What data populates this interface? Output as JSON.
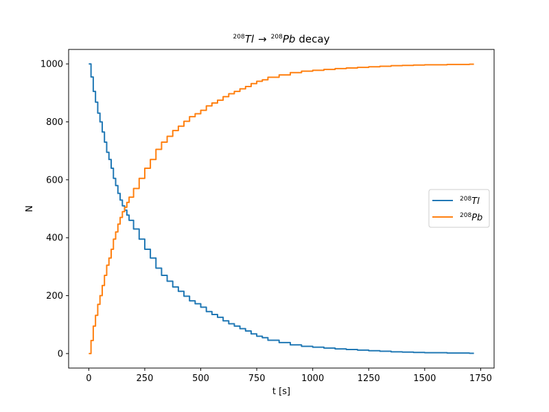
{
  "chart_data": {
    "type": "line",
    "title": {
      "mass_a": "208",
      "symbol_a": "Tl",
      "arrow": "→",
      "mass_b": "208",
      "symbol_b": "Pb",
      "word": "decay"
    },
    "xlabel": "t [s]",
    "ylabel": "N",
    "xlim": [
      -90,
      1810
    ],
    "ylim": [
      -50,
      1050
    ],
    "xticks": [
      0,
      250,
      500,
      750,
      1000,
      1250,
      1500,
      1750
    ],
    "yticks": [
      0,
      200,
      400,
      600,
      800,
      1000
    ],
    "grid": false,
    "legend_position": "center-right",
    "series": [
      {
        "name_mass": "208",
        "name_symbol": "Tl",
        "color": "#1f77b4",
        "x": [
          0,
          10,
          20,
          30,
          40,
          50,
          60,
          70,
          80,
          90,
          100,
          110,
          120,
          130,
          140,
          150,
          160,
          170,
          180,
          200,
          225,
          250,
          275,
          300,
          325,
          350,
          375,
          400,
          425,
          450,
          475,
          500,
          525,
          550,
          575,
          600,
          625,
          650,
          675,
          700,
          725,
          750,
          775,
          800,
          850,
          900,
          950,
          1000,
          1050,
          1100,
          1150,
          1200,
          1250,
          1300,
          1350,
          1400,
          1450,
          1500,
          1550,
          1600,
          1650,
          1700,
          1720
        ],
        "y": [
          1000,
          955,
          905,
          868,
          830,
          800,
          765,
          730,
          695,
          670,
          640,
          605,
          580,
          553,
          530,
          510,
          495,
          478,
          460,
          430,
          395,
          360,
          330,
          295,
          270,
          250,
          230,
          215,
          198,
          182,
          172,
          160,
          145,
          135,
          125,
          113,
          103,
          95,
          86,
          78,
          68,
          60,
          55,
          46,
          38,
          30,
          25,
          22,
          19,
          16,
          14,
          12,
          10,
          8,
          6,
          5,
          4,
          3,
          3,
          2,
          2,
          1,
          1
        ]
      },
      {
        "name_mass": "208",
        "name_symbol": "Pb",
        "color": "#ff7f0e",
        "x": [
          0,
          10,
          20,
          30,
          40,
          50,
          60,
          70,
          80,
          90,
          100,
          110,
          120,
          130,
          140,
          150,
          160,
          170,
          180,
          200,
          225,
          250,
          275,
          300,
          325,
          350,
          375,
          400,
          425,
          450,
          475,
          500,
          525,
          550,
          575,
          600,
          625,
          650,
          675,
          700,
          725,
          750,
          775,
          800,
          850,
          900,
          950,
          1000,
          1050,
          1100,
          1150,
          1200,
          1250,
          1300,
          1350,
          1400,
          1450,
          1500,
          1550,
          1600,
          1650,
          1700,
          1720
        ],
        "y": [
          0,
          45,
          95,
          132,
          170,
          200,
          235,
          270,
          305,
          330,
          360,
          395,
          420,
          447,
          470,
          490,
          505,
          522,
          540,
          570,
          605,
          640,
          670,
          705,
          730,
          750,
          770,
          785,
          802,
          818,
          828,
          840,
          855,
          865,
          875,
          887,
          897,
          905,
          914,
          922,
          932,
          940,
          945,
          954,
          962,
          970,
          975,
          978,
          981,
          984,
          986,
          988,
          990,
          992,
          994,
          995,
          996,
          997,
          997,
          998,
          998,
          999,
          999
        ]
      }
    ]
  }
}
